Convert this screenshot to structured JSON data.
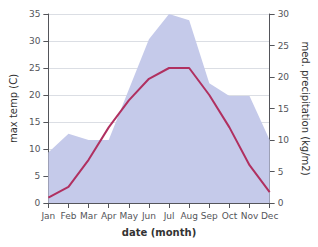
{
  "chart_data": {
    "type": "line",
    "categories": [
      "Jan",
      "Feb",
      "Mar",
      "Apr",
      "May",
      "Jun",
      "Jul",
      "Aug",
      "Sep",
      "Oct",
      "Nov",
      "Dec"
    ],
    "xlabel": "date (month)",
    "ylabel": "max temp (C)",
    "y2label": "med. precipitation (kg/m2)",
    "series": [
      {
        "type": "area",
        "axis": "y2",
        "color": "#c5caea",
        "values": [
          8,
          11,
          10,
          10,
          18,
          26,
          30,
          29,
          19,
          17,
          17,
          10
        ]
      },
      {
        "type": "line",
        "color": "#b03060",
        "values": [
          1,
          3,
          8,
          14,
          19,
          23,
          25,
          25,
          20,
          14,
          7,
          2
        ]
      }
    ],
    "ylim": [
      0,
      35
    ],
    "yticks": [
      0,
      5,
      10,
      15,
      20,
      25,
      30,
      35
    ],
    "y2lim": [
      0,
      30
    ],
    "y2ticks": [
      0,
      5,
      10,
      15,
      20,
      25,
      30
    ],
    "grid": true
  }
}
